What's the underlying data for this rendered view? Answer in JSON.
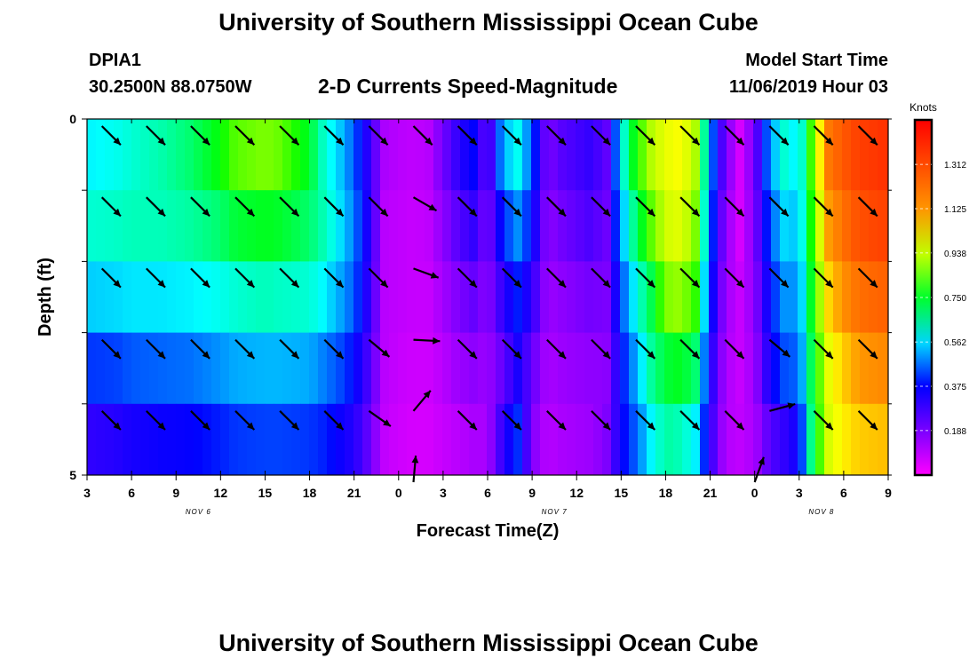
{
  "header": {
    "title": "University of Southern Mississippi Ocean Cube",
    "station_id": "DPIA1",
    "station_coords": "30.2500N 88.0750W",
    "model_start_label": "Model Start Time",
    "model_start_value": "11/06/2019 Hour 03"
  },
  "footer": {
    "title": "University of Southern Mississippi Ocean Cube"
  },
  "chart_data": {
    "type": "heatmap",
    "title": "2-D Currents Speed-Magnitude",
    "xlabel": "Forecast Time(Z)",
    "ylabel": "Depth (ft)",
    "x_tick_labels": [
      "3",
      "6",
      "9",
      "12",
      "15",
      "18",
      "21",
      "0",
      "3",
      "6",
      "9",
      "12",
      "15",
      "18",
      "21",
      "0",
      "3",
      "6",
      "9"
    ],
    "x_range_hours": [
      0,
      54
    ],
    "date_labels": [
      {
        "text": "NOV 6",
        "at_tick": 2.5
      },
      {
        "text": "NOV 7",
        "at_tick": 10.5
      },
      {
        "text": "NOV 8",
        "at_tick": 16.5
      }
    ],
    "y_tick_labels": [
      "0",
      "5"
    ],
    "ylim": [
      0,
      5
    ],
    "depth_levels": 5,
    "colorbar": {
      "label": "Knots",
      "ticks": [
        "1.312",
        "1.125",
        "0.938",
        "0.750",
        "0.562",
        "0.375",
        "0.188"
      ],
      "vmin": 0.0,
      "vmax": 1.5
    },
    "speed_columns": [
      {
        "x": 0,
        "v": [
          0.58,
          0.62,
          0.55,
          0.42,
          0.3,
          0.25
        ]
      },
      {
        "x": 2,
        "v": [
          0.6,
          0.63,
          0.56,
          0.43,
          0.32,
          0.28
        ]
      },
      {
        "x": 3,
        "v": [
          0.62,
          0.64,
          0.57,
          0.45,
          0.34,
          0.3
        ]
      },
      {
        "x": 5,
        "v": [
          0.65,
          0.64,
          0.57,
          0.46,
          0.36,
          0.31
        ]
      },
      {
        "x": 7,
        "v": [
          0.7,
          0.66,
          0.58,
          0.47,
          0.37,
          0.32
        ]
      },
      {
        "x": 9,
        "v": [
          0.78,
          0.7,
          0.6,
          0.5,
          0.4,
          0.33
        ]
      },
      {
        "x": 10,
        "v": [
          0.85,
          0.74,
          0.62,
          0.52,
          0.42,
          0.34
        ]
      },
      {
        "x": 12,
        "v": [
          0.88,
          0.76,
          0.64,
          0.53,
          0.43,
          0.35
        ]
      },
      {
        "x": 13,
        "v": [
          0.86,
          0.75,
          0.63,
          0.53,
          0.43,
          0.35
        ]
      },
      {
        "x": 15,
        "v": [
          0.75,
          0.7,
          0.62,
          0.52,
          0.42,
          0.35
        ]
      },
      {
        "x": 16,
        "v": [
          0.62,
          0.64,
          0.58,
          0.48,
          0.4,
          0.33
        ]
      },
      {
        "x": 17,
        "v": [
          0.55,
          0.57,
          0.52,
          0.44,
          0.36,
          0.3
        ]
      },
      {
        "x": 18,
        "v": [
          0.45,
          0.48,
          0.45,
          0.38,
          0.32,
          0.26
        ]
      },
      {
        "x": 19,
        "v": [
          0.3,
          0.32,
          0.3,
          0.26,
          0.22,
          0.18
        ]
      },
      {
        "x": 20,
        "v": [
          0.12,
          0.1,
          0.1,
          0.1,
          0.09,
          0.08
        ]
      },
      {
        "x": 21,
        "v": [
          0.1,
          0.09,
          0.09,
          0.08,
          0.07,
          0.05
        ]
      },
      {
        "x": 22,
        "v": [
          0.09,
          0.08,
          0.08,
          0.07,
          0.06,
          0.04
        ]
      },
      {
        "x": 23,
        "v": [
          0.1,
          0.09,
          0.08,
          0.07,
          0.06,
          0.05
        ]
      },
      {
        "x": 24,
        "v": [
          0.2,
          0.16,
          0.13,
          0.1,
          0.08,
          0.08
        ]
      },
      {
        "x": 25,
        "v": [
          0.3,
          0.24,
          0.18,
          0.14,
          0.1,
          0.09
        ]
      },
      {
        "x": 26,
        "v": [
          0.38,
          0.3,
          0.22,
          0.16,
          0.12,
          0.1
        ]
      },
      {
        "x": 27,
        "v": [
          0.2,
          0.18,
          0.16,
          0.14,
          0.12,
          0.12
        ]
      },
      {
        "x": 28,
        "v": [
          0.52,
          0.4,
          0.3,
          0.22,
          0.3,
          0.24
        ]
      },
      {
        "x": 29,
        "v": [
          0.6,
          0.5,
          0.4,
          0.34,
          0.42,
          0.3
        ]
      },
      {
        "x": 30,
        "v": [
          0.45,
          0.38,
          0.3,
          0.22,
          0.18,
          0.16
        ]
      },
      {
        "x": 31,
        "v": [
          0.18,
          0.16,
          0.14,
          0.12,
          0.1,
          0.1
        ]
      },
      {
        "x": 32,
        "v": [
          0.24,
          0.2,
          0.16,
          0.14,
          0.12,
          0.1
        ]
      },
      {
        "x": 34,
        "v": [
          0.3,
          0.26,
          0.2,
          0.16,
          0.14,
          0.12
        ]
      },
      {
        "x": 35,
        "v": [
          0.22,
          0.2,
          0.18,
          0.16,
          0.18,
          0.4
        ]
      },
      {
        "x": 36,
        "v": [
          0.58,
          0.52,
          0.44,
          0.38,
          0.36,
          0.5
        ]
      },
      {
        "x": 37,
        "v": [
          0.8,
          0.7,
          0.6,
          0.52,
          0.46,
          0.52
        ]
      },
      {
        "x": 38,
        "v": [
          0.92,
          0.85,
          0.72,
          0.66,
          0.58,
          0.52
        ]
      },
      {
        "x": 39,
        "v": [
          0.98,
          0.95,
          0.88,
          0.74,
          0.66,
          0.54
        ]
      },
      {
        "x": 40,
        "v": [
          1.0,
          0.97,
          0.9,
          0.76,
          0.64,
          0.5
        ]
      },
      {
        "x": 41,
        "v": [
          0.92,
          0.88,
          0.82,
          0.7,
          0.58,
          0.44
        ]
      },
      {
        "x": 42,
        "v": [
          0.5,
          0.46,
          0.4,
          0.34,
          0.3,
          0.24
        ]
      },
      {
        "x": 43,
        "v": [
          0.2,
          0.16,
          0.14,
          0.12,
          0.11,
          0.1
        ]
      },
      {
        "x": 44,
        "v": [
          0.06,
          0.06,
          0.08,
          0.08,
          0.09,
          0.1
        ]
      },
      {
        "x": 45,
        "v": [
          0.2,
          0.18,
          0.16,
          0.14,
          0.12,
          0.12
        ]
      },
      {
        "x": 46,
        "v": [
          0.5,
          0.44,
          0.38,
          0.34,
          0.24,
          0.16
        ]
      },
      {
        "x": 47,
        "v": [
          0.62,
          0.56,
          0.5,
          0.44,
          0.3,
          0.2
        ]
      },
      {
        "x": 48,
        "v": [
          0.56,
          0.54,
          0.5,
          0.46,
          0.36,
          0.3
        ]
      },
      {
        "x": 49,
        "v": [
          0.9,
          0.86,
          0.82,
          0.78,
          0.76,
          0.55
        ]
      },
      {
        "x": 50,
        "v": [
          1.2,
          1.12,
          1.05,
          0.98,
          0.96,
          0.82
        ]
      },
      {
        "x": 51,
        "v": [
          1.28,
          1.22,
          1.14,
          1.06,
          1.02,
          0.88
        ]
      },
      {
        "x": 52,
        "v": [
          1.34,
          1.3,
          1.22,
          1.12,
          1.06,
          0.92
        ]
      },
      {
        "x": 54,
        "v": [
          1.38,
          1.34,
          1.26,
          1.16,
          1.08,
          0.95
        ]
      }
    ],
    "vectors": [
      {
        "x": 1,
        "level": 0,
        "angle": -45,
        "speed": 0.62
      },
      {
        "x": 4,
        "level": 0,
        "angle": -45,
        "speed": 0.64
      },
      {
        "x": 7,
        "level": 0,
        "angle": -45,
        "speed": 0.72
      },
      {
        "x": 10,
        "level": 0,
        "angle": -45,
        "speed": 0.86
      },
      {
        "x": 13,
        "level": 0,
        "angle": -45,
        "speed": 0.8
      },
      {
        "x": 16,
        "level": 0,
        "angle": -45,
        "speed": 0.6
      },
      {
        "x": 19,
        "level": 0,
        "angle": -45,
        "speed": 0.2
      },
      {
        "x": 22,
        "level": 0,
        "angle": -45,
        "speed": 0.15
      },
      {
        "x": 25,
        "level": 0,
        "angle": -45,
        "speed": 0.35
      },
      {
        "x": 28,
        "level": 0,
        "angle": -45,
        "speed": 0.55
      },
      {
        "x": 31,
        "level": 0,
        "angle": -45,
        "speed": 0.22
      },
      {
        "x": 34,
        "level": 0,
        "angle": -45,
        "speed": 0.28
      },
      {
        "x": 37,
        "level": 0,
        "angle": -45,
        "speed": 0.8
      },
      {
        "x": 40,
        "level": 0,
        "angle": -45,
        "speed": 0.98
      },
      {
        "x": 43,
        "level": 0,
        "angle": -45,
        "speed": 0.18
      },
      {
        "x": 46,
        "level": 0,
        "angle": -45,
        "speed": 0.5
      },
      {
        "x": 49,
        "level": 0,
        "angle": -45,
        "speed": 0.9
      },
      {
        "x": 52,
        "level": 0,
        "angle": -45,
        "speed": 1.3
      },
      {
        "x": 1,
        "level": 1,
        "angle": -45,
        "speed": 0.62
      },
      {
        "x": 4,
        "level": 1,
        "angle": -45,
        "speed": 0.64
      },
      {
        "x": 7,
        "level": 1,
        "angle": -45,
        "speed": 0.7
      },
      {
        "x": 10,
        "level": 1,
        "angle": -45,
        "speed": 0.75
      },
      {
        "x": 13,
        "level": 1,
        "angle": -45,
        "speed": 0.74
      },
      {
        "x": 16,
        "level": 1,
        "angle": -45,
        "speed": 0.6
      },
      {
        "x": 19,
        "level": 1,
        "angle": -45,
        "speed": 0.18
      },
      {
        "x": 22,
        "level": 1,
        "angle": -30,
        "speed": 0.12
      },
      {
        "x": 25,
        "level": 1,
        "angle": -45,
        "speed": 0.28
      },
      {
        "x": 28,
        "level": 1,
        "angle": -45,
        "speed": 0.45
      },
      {
        "x": 31,
        "level": 1,
        "angle": -45,
        "speed": 0.18
      },
      {
        "x": 34,
        "level": 1,
        "angle": -45,
        "speed": 0.24
      },
      {
        "x": 37,
        "level": 1,
        "angle": -45,
        "speed": 0.75
      },
      {
        "x": 40,
        "level": 1,
        "angle": -45,
        "speed": 0.95
      },
      {
        "x": 43,
        "level": 1,
        "angle": -45,
        "speed": 0.16
      },
      {
        "x": 46,
        "level": 1,
        "angle": -45,
        "speed": 0.46
      },
      {
        "x": 49,
        "level": 1,
        "angle": -45,
        "speed": 0.86
      },
      {
        "x": 52,
        "level": 1,
        "angle": -45,
        "speed": 1.25
      },
      {
        "x": 1,
        "level": 2,
        "angle": -45,
        "speed": 0.56
      },
      {
        "x": 4,
        "level": 2,
        "angle": -45,
        "speed": 0.57
      },
      {
        "x": 7,
        "level": 2,
        "angle": -45,
        "speed": 0.6
      },
      {
        "x": 10,
        "level": 2,
        "angle": -45,
        "speed": 0.64
      },
      {
        "x": 13,
        "level": 2,
        "angle": -45,
        "speed": 0.63
      },
      {
        "x": 16,
        "level": 2,
        "angle": -45,
        "speed": 0.55
      },
      {
        "x": 19,
        "level": 2,
        "angle": -45,
        "speed": 0.16
      },
      {
        "x": 22,
        "level": 2,
        "angle": -20,
        "speed": 0.1
      },
      {
        "x": 25,
        "level": 2,
        "angle": -45,
        "speed": 0.22
      },
      {
        "x": 28,
        "level": 2,
        "angle": -45,
        "speed": 0.36
      },
      {
        "x": 31,
        "level": 2,
        "angle": -45,
        "speed": 0.16
      },
      {
        "x": 34,
        "level": 2,
        "angle": -45,
        "speed": 0.2
      },
      {
        "x": 37,
        "level": 2,
        "angle": -45,
        "speed": 0.68
      },
      {
        "x": 40,
        "level": 2,
        "angle": -45,
        "speed": 0.88
      },
      {
        "x": 43,
        "level": 2,
        "angle": -45,
        "speed": 0.15
      },
      {
        "x": 46,
        "level": 2,
        "angle": -45,
        "speed": 0.42
      },
      {
        "x": 49,
        "level": 2,
        "angle": -45,
        "speed": 0.82
      },
      {
        "x": 52,
        "level": 2,
        "angle": -45,
        "speed": 1.18
      },
      {
        "x": 1,
        "level": 3,
        "angle": -45,
        "speed": 0.44
      },
      {
        "x": 4,
        "level": 3,
        "angle": -45,
        "speed": 0.46
      },
      {
        "x": 7,
        "level": 3,
        "angle": -45,
        "speed": 0.5
      },
      {
        "x": 10,
        "level": 3,
        "angle": -45,
        "speed": 0.53
      },
      {
        "x": 13,
        "level": 3,
        "angle": -45,
        "speed": 0.52
      },
      {
        "x": 16,
        "level": 3,
        "angle": -45,
        "speed": 0.46
      },
      {
        "x": 19,
        "level": 3,
        "angle": -40,
        "speed": 0.14
      },
      {
        "x": 22,
        "level": 3,
        "angle": -3,
        "speed": 0.09
      },
      {
        "x": 25,
        "level": 3,
        "angle": -45,
        "speed": 0.18
      },
      {
        "x": 28,
        "level": 3,
        "angle": -45,
        "speed": 0.3
      },
      {
        "x": 31,
        "level": 3,
        "angle": -45,
        "speed": 0.14
      },
      {
        "x": 34,
        "level": 3,
        "angle": -45,
        "speed": 0.17
      },
      {
        "x": 37,
        "level": 3,
        "angle": -45,
        "speed": 0.6
      },
      {
        "x": 40,
        "level": 3,
        "angle": -45,
        "speed": 0.74
      },
      {
        "x": 43,
        "level": 3,
        "angle": -45,
        "speed": 0.13
      },
      {
        "x": 46,
        "level": 3,
        "angle": -40,
        "speed": 0.36
      },
      {
        "x": 49,
        "level": 3,
        "angle": -45,
        "speed": 0.78
      },
      {
        "x": 52,
        "level": 3,
        "angle": -45,
        "speed": 1.1
      },
      {
        "x": 1,
        "level": 4,
        "angle": -45,
        "speed": 0.32
      },
      {
        "x": 4,
        "level": 4,
        "angle": -45,
        "speed": 0.36
      },
      {
        "x": 7,
        "level": 4,
        "angle": -45,
        "speed": 0.4
      },
      {
        "x": 10,
        "level": 4,
        "angle": -45,
        "speed": 0.43
      },
      {
        "x": 13,
        "level": 4,
        "angle": -45,
        "speed": 0.42
      },
      {
        "x": 16,
        "level": 4,
        "angle": -45,
        "speed": 0.38
      },
      {
        "x": 19,
        "level": 4,
        "angle": -35,
        "speed": 0.12
      },
      {
        "x": 22,
        "level": 4,
        "angle": 50,
        "speed": 0.08
      },
      {
        "x": 25,
        "level": 4,
        "angle": -45,
        "speed": 0.14
      },
      {
        "x": 28,
        "level": 4,
        "angle": -45,
        "speed": 0.36
      },
      {
        "x": 31,
        "level": 4,
        "angle": -45,
        "speed": 0.12
      },
      {
        "x": 34,
        "level": 4,
        "angle": -45,
        "speed": 0.15
      },
      {
        "x": 37,
        "level": 4,
        "angle": -45,
        "speed": 0.52
      },
      {
        "x": 40,
        "level": 4,
        "angle": -45,
        "speed": 0.62
      },
      {
        "x": 43,
        "level": 4,
        "angle": -45,
        "speed": 0.12
      },
      {
        "x": 46,
        "level": 4,
        "angle": 15,
        "speed": 0.26
      },
      {
        "x": 49,
        "level": 4,
        "angle": -45,
        "speed": 0.76
      },
      {
        "x": 52,
        "level": 4,
        "angle": -45,
        "speed": 1.06
      },
      {
        "x": 22,
        "level": 5,
        "angle": 85,
        "speed": 0.06
      },
      {
        "x": 45,
        "level": 5,
        "angle": 70,
        "speed": 0.1
      }
    ]
  }
}
